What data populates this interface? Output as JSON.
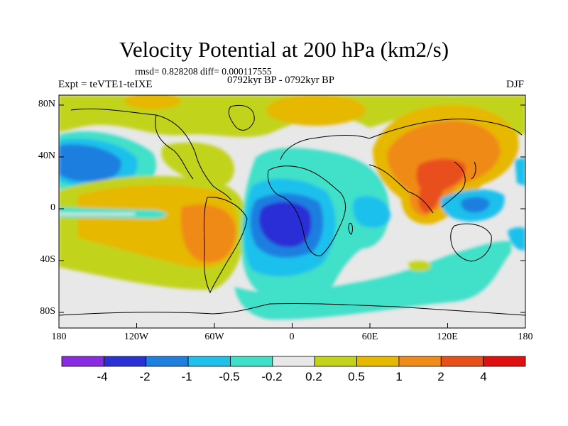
{
  "header": {
    "title": "Velocity Potential at 200 hPa (km2/s)",
    "stats": "rmsd= 0.828208 diff= 0.000117555",
    "period": "0792kyr BP - 0792kyr BP",
    "experiment": "Expt = teVTE1-teIXE",
    "season": "DJF"
  },
  "axes": {
    "lat_labels": [
      "80N",
      "40N",
      "0",
      "40S",
      "80S"
    ],
    "lon_labels": [
      "180",
      "120W",
      "60W",
      "0",
      "60E",
      "120E",
      "180"
    ]
  },
  "colorbar": {
    "colors": [
      "#8a2be2",
      "#2b2fd6",
      "#1d7fe0",
      "#1fc0ec",
      "#3fe0c9",
      "#e8e8e8",
      "#c2d31a",
      "#e6b800",
      "#f08a19",
      "#e8501a",
      "#e01010"
    ],
    "labels": [
      "-4",
      "-2",
      "-1",
      "-0.5",
      "-0.2",
      "0.2",
      "0.5",
      "1",
      "2",
      "4"
    ]
  },
  "field": {
    "background": "#e8e8e8",
    "regions": [
      {
        "name": "arctic-yellow-band",
        "level": "0.5",
        "color": "#c2d31a",
        "lon": [
          -180,
          180
        ],
        "lat": [
          60,
          90
        ]
      },
      {
        "name": "north-pacific-low",
        "level": "-1",
        "color": "#1d7fe0",
        "lon": [
          -180,
          -140
        ],
        "lat": [
          15,
          55
        ]
      },
      {
        "name": "south-america-high",
        "level": "2",
        "color": "#f08a19",
        "lon": [
          -90,
          -45
        ],
        "lat": [
          -40,
          0
        ]
      },
      {
        "name": "south-atlantic-low",
        "level": "-2",
        "color": "#2b2fd6",
        "lon": [
          -30,
          15
        ],
        "lat": [
          -30,
          5
        ]
      },
      {
        "name": "asia-high",
        "level": "2",
        "color": "#f08a19",
        "lon": [
          60,
          135
        ],
        "lat": [
          0,
          70
        ]
      },
      {
        "name": "south-china-sea-high",
        "level": "4",
        "color": "#e8501a",
        "lon": [
          90,
          130
        ],
        "lat": [
          -10,
          40
        ]
      },
      {
        "name": "southern-ocean-band",
        "level": "-0.2",
        "color": "#3fe0c9",
        "lon": [
          -60,
          140
        ],
        "lat": [
          -80,
          -45
        ]
      }
    ]
  }
}
